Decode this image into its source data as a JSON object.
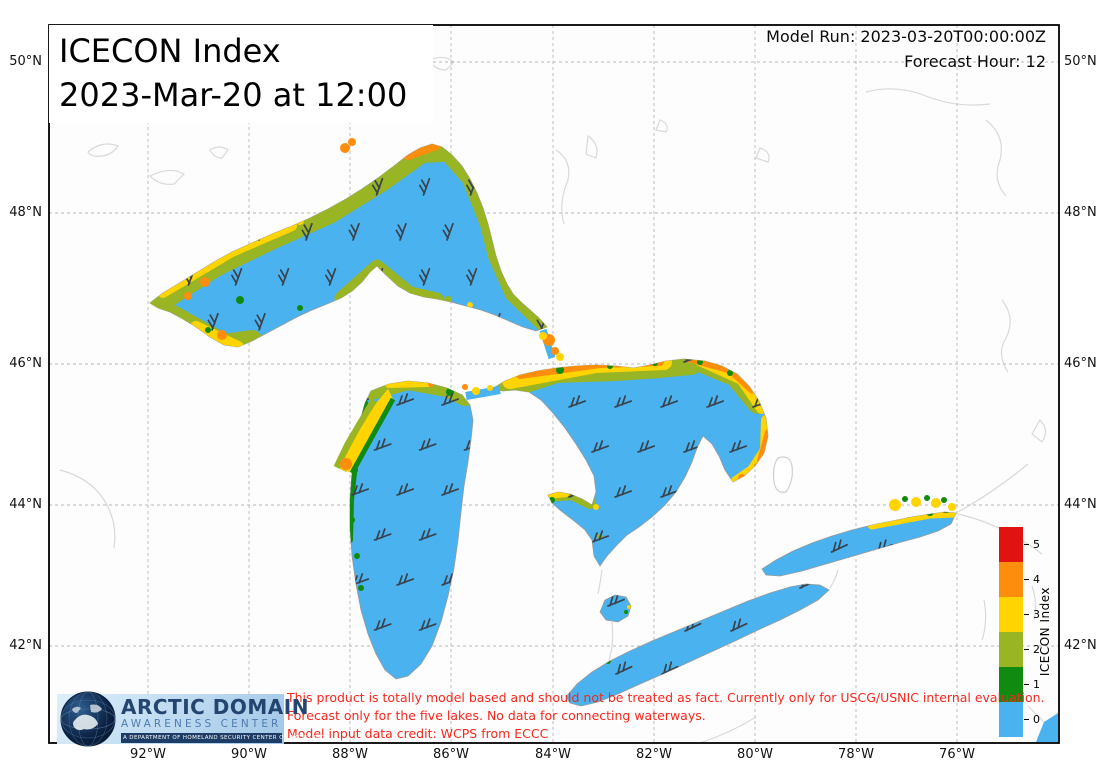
{
  "header": {
    "title_line1": "ICECON Index",
    "title_line2": "2023-Mar-20 at 12:00",
    "model_run": "Model Run: 2023-03-20T00:00:00Z",
    "forecast_hour": "Forecast Hour: 12"
  },
  "axes": {
    "lat_labels": [
      "50°N",
      "48°N",
      "46°N",
      "44°N",
      "42°N"
    ],
    "lon_labels": [
      "92°W",
      "90°W",
      "88°W",
      "86°W",
      "84°W",
      "82°W",
      "80°W",
      "78°W",
      "76°W"
    ]
  },
  "colorbar": {
    "label": "ICECON Index",
    "segments": [
      {
        "value": "5",
        "color": "#e01212"
      },
      {
        "value": "4",
        "color": "#fc8d0d"
      },
      {
        "value": "3",
        "color": "#ffd400"
      },
      {
        "value": "2",
        "color": "#99b524"
      },
      {
        "value": "1",
        "color": "#108a10"
      },
      {
        "value": "0",
        "color": "#49b2ef"
      }
    ]
  },
  "disclaimer": {
    "line1": "This product is totally model based and should not be treated as fact. Currently only for USCG/USNIC internal evaluation.",
    "line2": "Forecast only for the five lakes. No data for connecting waterways.",
    "line3": "Model input data credit: WCPS from ECCC"
  },
  "logo": {
    "title": "ARCTIC DOMAIN",
    "subtitle": "AWARENESS CENTER",
    "tagline": "A DEPARTMENT OF HOMELAND SECURITY CENTER OF EXCELLENCE"
  }
}
